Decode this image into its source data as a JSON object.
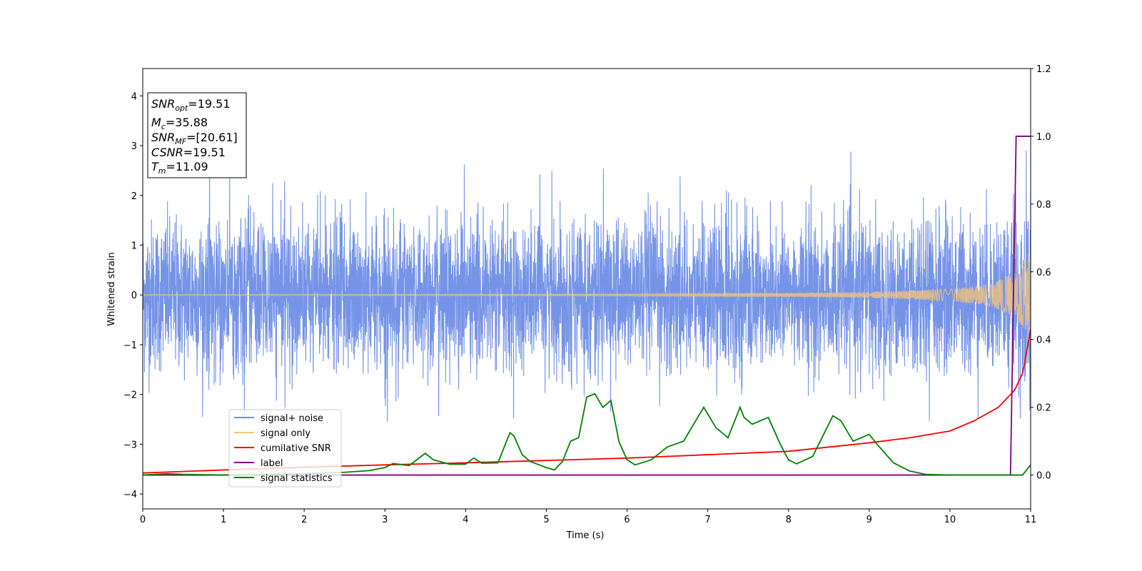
{
  "chart_data": {
    "type": "line",
    "xlabel": "Time (s)",
    "ylabel": "Whitened strain",
    "xlim": [
      0,
      11
    ],
    "ylim": [
      -4.3,
      4.55
    ],
    "y2lim": [
      -0.1,
      1.2
    ],
    "x_ticks": [
      "0",
      "1",
      "2",
      "3",
      "4",
      "5",
      "6",
      "7",
      "8",
      "9",
      "10",
      "11"
    ],
    "y_ticks": [
      "−4",
      "−3",
      "−2",
      "−1",
      "0",
      "1",
      "2",
      "3",
      "4"
    ],
    "y2_ticks": [
      "0.0",
      "0.2",
      "0.4",
      "0.6",
      "0.8",
      "1.0",
      "1.2"
    ],
    "legend_position": "lower-left",
    "grid": false,
    "stats": {
      "snr_opt": {
        "symbol": "SNR",
        "sub": "opt",
        "value": "=19.51"
      },
      "mc": {
        "symbol": "M",
        "sub": "c",
        "value": "=35.88"
      },
      "snr_mf": {
        "symbol": "SNR",
        "sub": "MF",
        "value": "=[20.61]"
      },
      "csnr": {
        "symbol": "CSNR",
        "sub": "",
        "value": "=19.51"
      },
      "tm": {
        "symbol": "T",
        "sub": "m",
        "value": "=11.09"
      }
    },
    "series": [
      {
        "name": "signal+ noise",
        "color": "#6f8ee6",
        "axis": "left",
        "description": "whitened noisy strain, roughly within −2.5 to 2.9",
        "envelope": {
          "x": [
            0,
            11
          ],
          "ymin": -2.6,
          "ymax": 2.9
        }
      },
      {
        "name": "signal only",
        "color": "#f7c678",
        "axis": "left",
        "description": "chirp signal with growing amplitude",
        "amplitude": {
          "x": [
            0,
            6,
            8,
            9,
            10,
            10.5,
            10.8,
            11
          ],
          "y": [
            0.01,
            0.02,
            0.04,
            0.06,
            0.12,
            0.22,
            0.45,
            0.9
          ]
        }
      },
      {
        "name": "cumilative SNR",
        "color": "#ff0000",
        "axis": "right",
        "x": [
          0,
          1,
          2,
          3,
          4,
          5,
          6,
          7,
          8,
          9,
          9.5,
          10,
          10.3,
          10.6,
          10.8,
          10.9,
          11
        ],
        "y": [
          0.006,
          0.015,
          0.023,
          0.03,
          0.036,
          0.043,
          0.05,
          0.06,
          0.07,
          0.095,
          0.11,
          0.13,
          0.16,
          0.2,
          0.25,
          0.3,
          0.43
        ]
      },
      {
        "name": "label",
        "color": "#800080",
        "axis": "right",
        "x": [
          0,
          10.75,
          10.82,
          11
        ],
        "y": [
          0,
          0,
          1,
          1
        ]
      },
      {
        "name": "signal statistics",
        "color": "#008000",
        "axis": "right",
        "x": [
          0,
          0.3,
          0.5,
          1,
          1.5,
          2,
          2.5,
          2.8,
          3.0,
          3.1,
          3.3,
          3.5,
          3.6,
          3.8,
          4.0,
          4.1,
          4.2,
          4.4,
          4.55,
          4.6,
          4.7,
          4.8,
          5.0,
          5.1,
          5.2,
          5.3,
          5.4,
          5.5,
          5.6,
          5.7,
          5.8,
          5.9,
          6.0,
          6.1,
          6.3,
          6.5,
          6.7,
          6.8,
          6.95,
          7.1,
          7.25,
          7.4,
          7.45,
          7.55,
          7.75,
          7.9,
          8.0,
          8.1,
          8.3,
          8.55,
          8.65,
          8.8,
          9.0,
          9.1,
          9.3,
          9.5,
          9.7,
          10,
          10.5,
          10.9,
          11
        ],
        "y": [
          0.0,
          0.004,
          0.002,
          0.0,
          0.001,
          0.004,
          0.008,
          0.013,
          0.022,
          0.034,
          0.028,
          0.064,
          0.045,
          0.032,
          0.032,
          0.05,
          0.035,
          0.036,
          0.125,
          0.115,
          0.06,
          0.04,
          0.022,
          0.015,
          0.04,
          0.1,
          0.11,
          0.23,
          0.24,
          0.2,
          0.22,
          0.098,
          0.045,
          0.03,
          0.045,
          0.083,
          0.1,
          0.14,
          0.2,
          0.14,
          0.11,
          0.2,
          0.17,
          0.15,
          0.17,
          0.09,
          0.045,
          0.033,
          0.055,
          0.175,
          0.16,
          0.1,
          0.12,
          0.09,
          0.036,
          0.012,
          0.002,
          0.0,
          0.0,
          0.0,
          0.03
        ]
      }
    ]
  }
}
